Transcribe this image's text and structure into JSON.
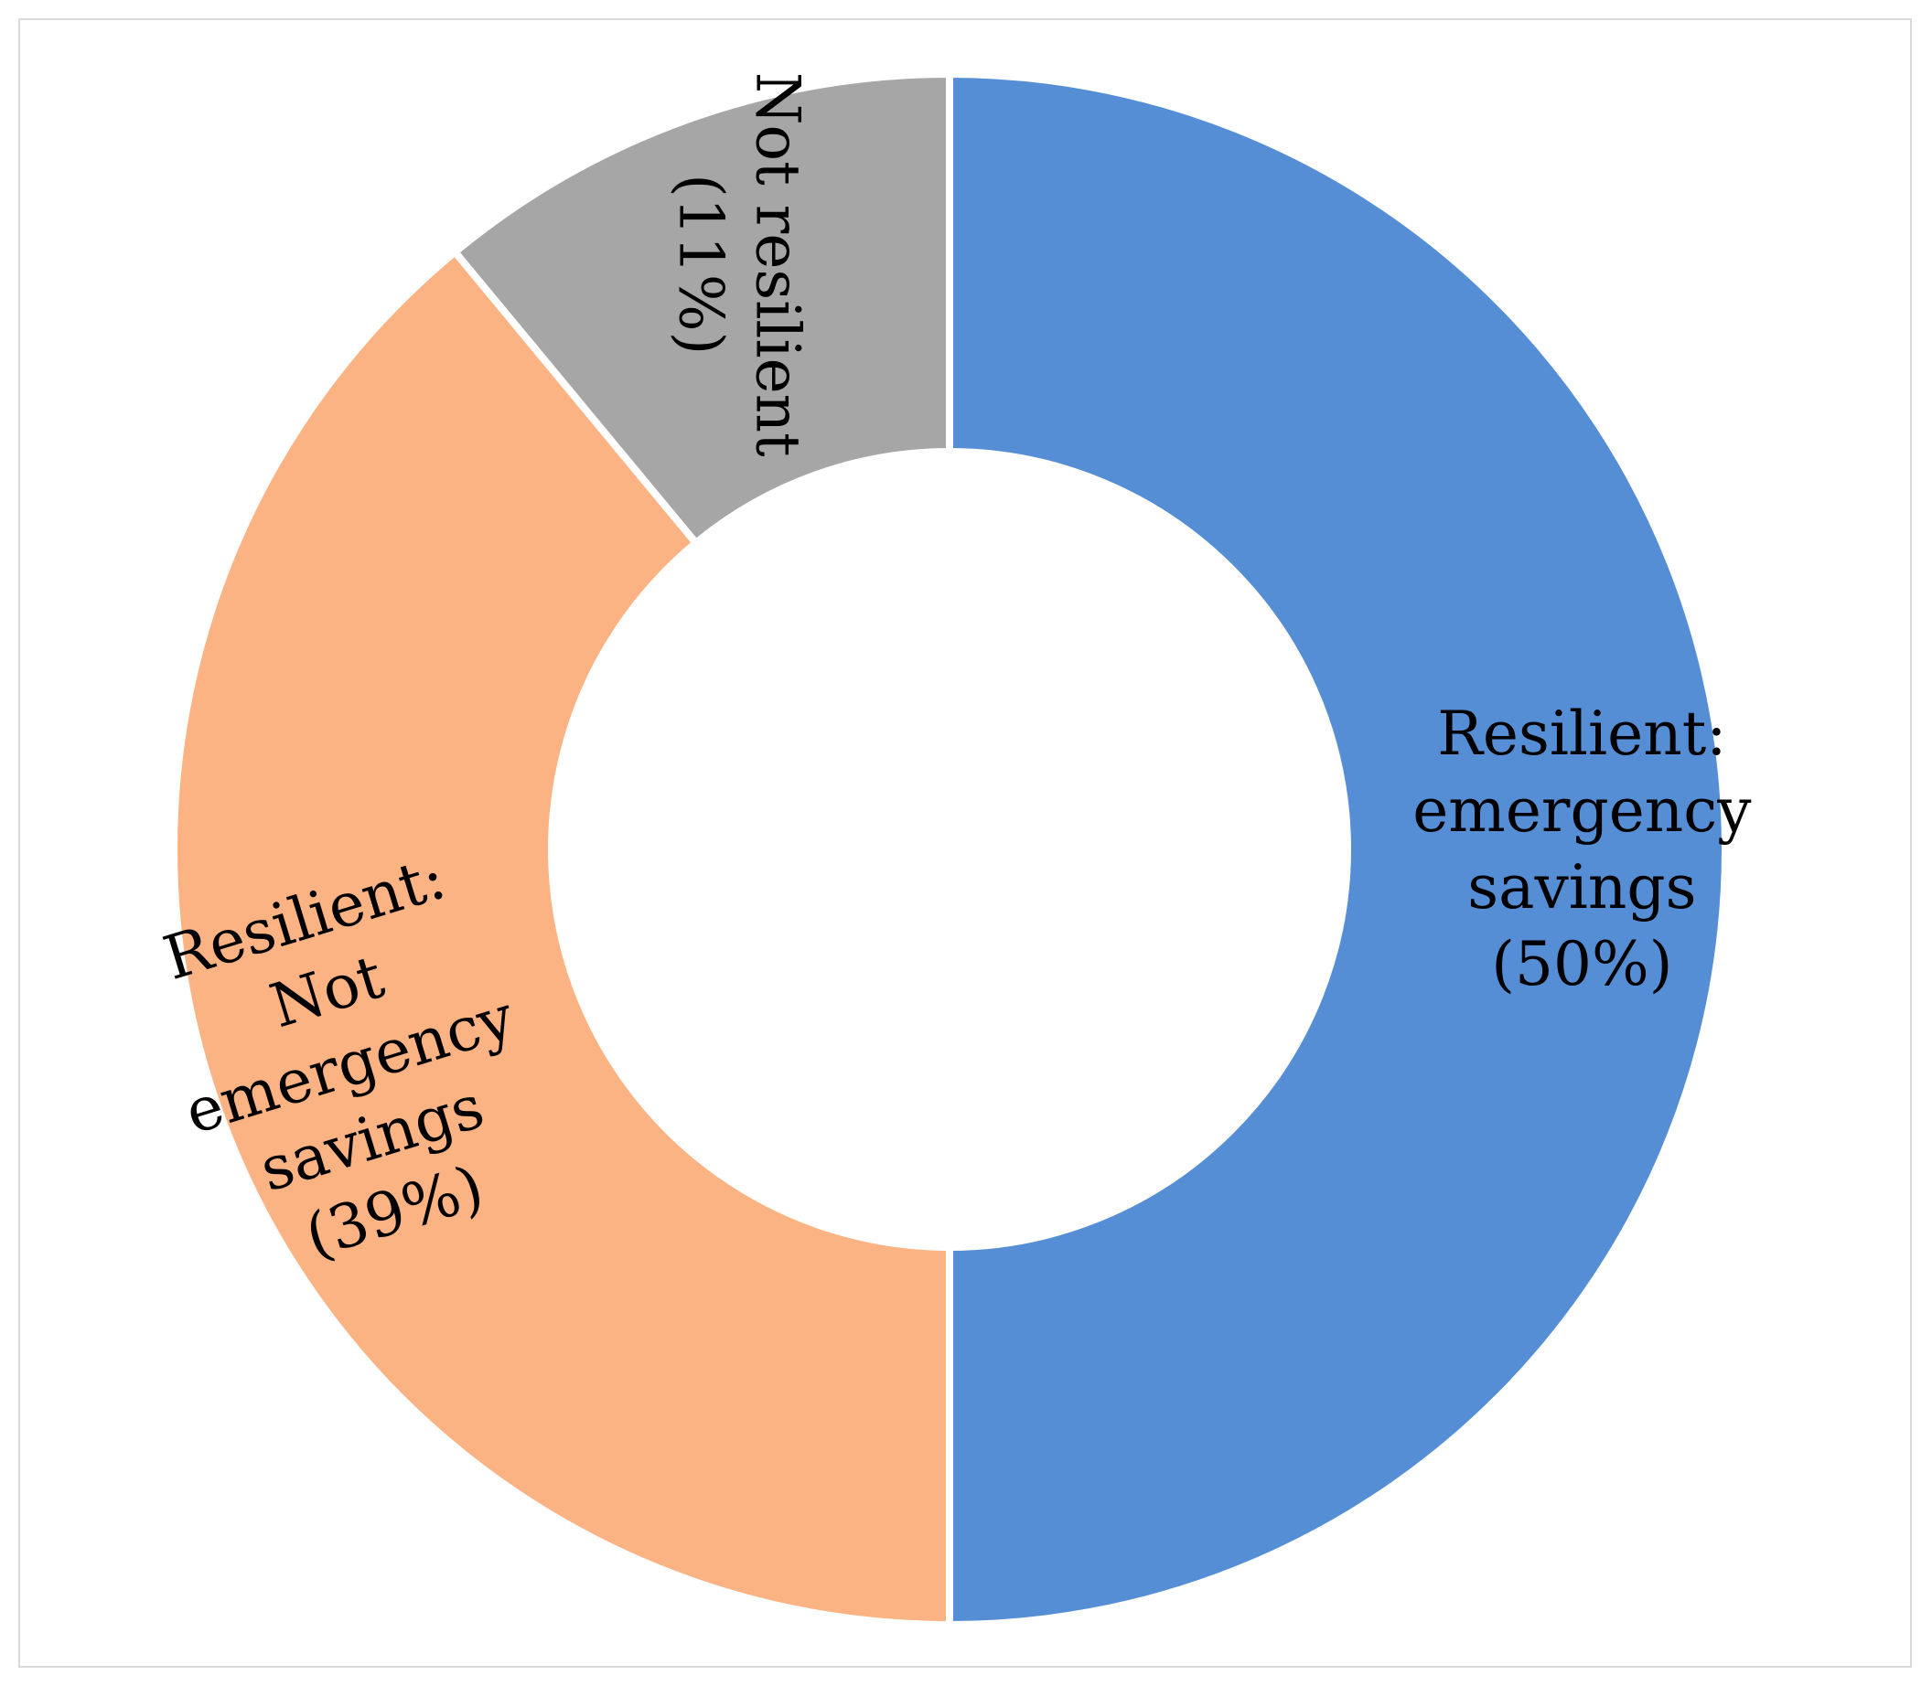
{
  "chart_data": {
    "type": "pie",
    "variant": "donut",
    "title": "",
    "legend": "none",
    "categories": [
      "Resilient: emergency savings",
      "Resilient: Not emergency savings",
      "Not resilient"
    ],
    "values": [
      50,
      39,
      11
    ],
    "units": "%",
    "data_labels": [
      [
        "Resilient:",
        "emergency",
        "savings",
        "(50%)"
      ],
      [
        "Resilient:",
        "Not",
        "emergency",
        "savings",
        "(39%)"
      ],
      [
        "Not resilient",
        "(11%)"
      ]
    ],
    "colors": [
      "#558ed5",
      "#fbb384",
      "#a6a6a6"
    ],
    "start_angle_deg": 0,
    "direction": "clockwise"
  }
}
